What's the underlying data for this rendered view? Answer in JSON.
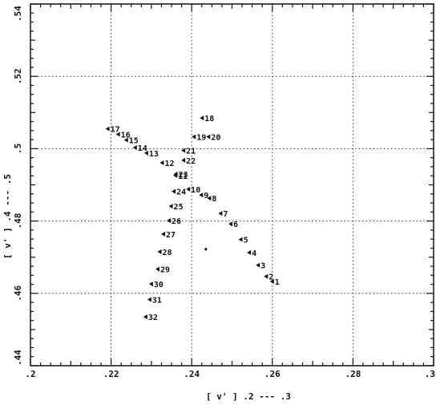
{
  "chart_data": {
    "type": "scatter",
    "title": "",
    "xlabel": "[ v' ]  .2 --- .3",
    "ylabel": "[ v' ]  .4 --- .5",
    "xlim": [
      0.2,
      0.3
    ],
    "ylim": [
      0.44,
      0.54
    ],
    "grid": true,
    "grid_style": "dotted",
    "x_ticks": [
      0.2,
      0.22,
      0.24,
      0.26,
      0.28,
      0.3
    ],
    "x_tick_labels": [
      ".2",
      ".22",
      ".24",
      ".26",
      ".28",
      ".3"
    ],
    "y_ticks": [
      0.44,
      0.46,
      0.48,
      0.5,
      0.52,
      0.54
    ],
    "y_tick_labels": [
      ".44",
      ".46",
      ".48",
      ".5",
      ".52",
      ".54"
    ],
    "points": [
      {
        "label": "1",
        "x": 0.26,
        "y": 0.4633
      },
      {
        "label": "2",
        "x": 0.2585,
        "y": 0.4647
      },
      {
        "label": "3",
        "x": 0.2565,
        "y": 0.4678
      },
      {
        "label": "4",
        "x": 0.2543,
        "y": 0.4713
      },
      {
        "label": "5",
        "x": 0.2522,
        "y": 0.4749
      },
      {
        "label": "6",
        "x": 0.2497,
        "y": 0.4792
      },
      {
        "label": "7",
        "x": 0.2472,
        "y": 0.4821
      },
      {
        "label": "8",
        "x": 0.2444,
        "y": 0.4863
      },
      {
        "label": "9",
        "x": 0.2424,
        "y": 0.4872
      },
      {
        "label": "10",
        "x": 0.2392,
        "y": 0.4888
      },
      {
        "label": "11",
        "x": 0.236,
        "y": 0.4926
      },
      {
        "label": "12",
        "x": 0.2327,
        "y": 0.4961
      },
      {
        "label": "13",
        "x": 0.2288,
        "y": 0.4988
      },
      {
        "label": "14",
        "x": 0.226,
        "y": 0.5003
      },
      {
        "label": "15",
        "x": 0.2238,
        "y": 0.5024
      },
      {
        "label": "16",
        "x": 0.2218,
        "y": 0.504
      },
      {
        "label": "17",
        "x": 0.2192,
        "y": 0.5055
      },
      {
        "label": "18",
        "x": 0.2426,
        "y": 0.5085
      },
      {
        "label": "19",
        "x": 0.2406,
        "y": 0.5033
      },
      {
        "label": "20",
        "x": 0.2442,
        "y": 0.5033
      },
      {
        "label": "21",
        "x": 0.238,
        "y": 0.4995
      },
      {
        "label": "22",
        "x": 0.238,
        "y": 0.4968
      },
      {
        "label": "23",
        "x": 0.2361,
        "y": 0.493
      },
      {
        "label": "24",
        "x": 0.2356,
        "y": 0.4882
      },
      {
        "label": "25",
        "x": 0.2349,
        "y": 0.4841
      },
      {
        "label": "26",
        "x": 0.2344,
        "y": 0.4801
      },
      {
        "label": "27",
        "x": 0.233,
        "y": 0.4764
      },
      {
        "label": "28",
        "x": 0.2321,
        "y": 0.4715
      },
      {
        "label": "29",
        "x": 0.2316,
        "y": 0.4667
      },
      {
        "label": "30",
        "x": 0.23,
        "y": 0.4626
      },
      {
        "label": "31",
        "x": 0.2296,
        "y": 0.4583
      },
      {
        "label": "32",
        "x": 0.2286,
        "y": 0.4535
      }
    ],
    "extra_points": [
      {
        "x": 0.2435,
        "y": 0.4722
      }
    ]
  }
}
